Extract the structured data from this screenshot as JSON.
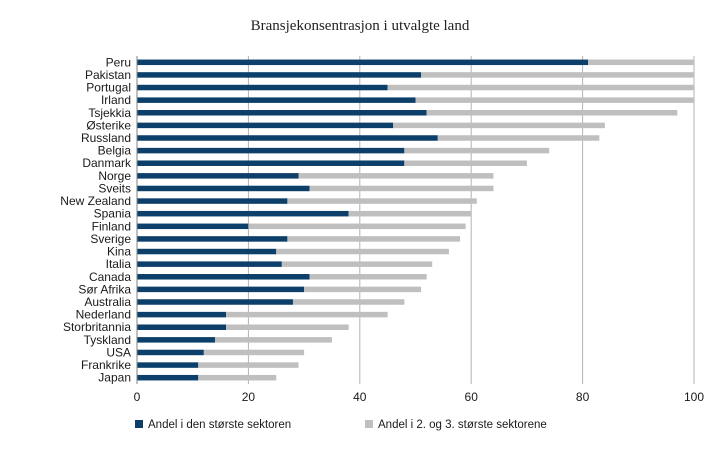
{
  "chart_data": {
    "type": "bar",
    "orientation": "horizontal",
    "stacked": true,
    "title": "Bransjekonsentrasjon i utvalgte land",
    "categories": [
      "Peru",
      "Pakistan",
      "Portugal",
      "Irland",
      "Tsjekkia",
      "Østerike",
      "Russland",
      "Belgia",
      "Danmark",
      "Norge",
      "Sveits",
      "New Zealand",
      "Spania",
      "Finland",
      "Sverige",
      "Kina",
      "Italia",
      "Canada",
      "Sør Afrika",
      "Australia",
      "Nederland",
      "Storbritannia",
      "Tyskland",
      "USA",
      "Frankrike",
      "Japan"
    ],
    "series": [
      {
        "name": "Andel i den største sektoren",
        "color": "#0d3f6b",
        "values": [
          81,
          51,
          45,
          50,
          52,
          46,
          54,
          48,
          48,
          29,
          31,
          27,
          38,
          20,
          27,
          25,
          26,
          31,
          30,
          28,
          16,
          16,
          14,
          12,
          11,
          11
        ]
      },
      {
        "name": "Andel i 2. og 3. største sektorene",
        "color": "#bfbfbf",
        "values": [
          19,
          49,
          55,
          50,
          45,
          38,
          29,
          26,
          22,
          35,
          33,
          34,
          22,
          39,
          31,
          31,
          27,
          21,
          21,
          20,
          29,
          22,
          21,
          18,
          18,
          14
        ]
      }
    ],
    "xlim": [
      0,
      100
    ],
    "xticks": [
      0,
      20,
      40,
      60,
      80,
      100
    ],
    "grid": true,
    "legend_position": "bottom"
  }
}
